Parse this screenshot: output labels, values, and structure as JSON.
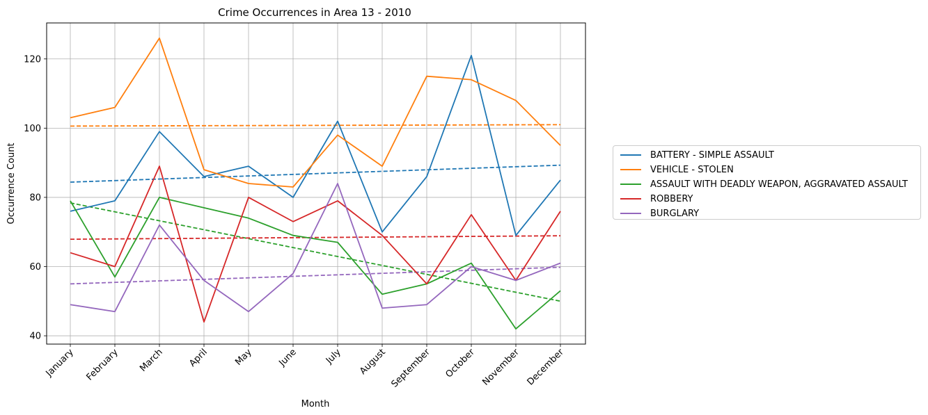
{
  "chart_data": {
    "type": "line",
    "title": "Crime Occurrences in Area 13 - 2010",
    "xlabel": "Month",
    "ylabel": "Occurrence Count",
    "categories": [
      "January",
      "February",
      "March",
      "April",
      "May",
      "June",
      "July",
      "August",
      "September",
      "October",
      "November",
      "December"
    ],
    "ylim": [
      37.6,
      130.4
    ],
    "yticks": [
      40,
      60,
      80,
      100,
      120
    ],
    "grid": true,
    "legend_position": "right",
    "series": [
      {
        "name": "BATTERY - SIMPLE ASSAULT",
        "color": "#1f77b4",
        "values": [
          76,
          79,
          99,
          86,
          89,
          80,
          102,
          70,
          86,
          121,
          69,
          85
        ],
        "trend": [
          84.4,
          89.3
        ]
      },
      {
        "name": "VEHICLE - STOLEN",
        "color": "#ff7f0e",
        "values": [
          103,
          106,
          126,
          88,
          84,
          83,
          98,
          89,
          115,
          114,
          108,
          95
        ],
        "trend": [
          100.6,
          101.0
        ]
      },
      {
        "name": "ASSAULT WITH DEADLY WEAPON, AGGRAVATED ASSAULT",
        "color": "#2ca02c",
        "values": [
          79,
          57,
          80,
          77,
          74,
          69,
          67,
          52,
          55,
          61,
          42,
          53
        ],
        "trend": [
          78.4,
          50.0
        ]
      },
      {
        "name": "ROBBERY",
        "color": "#d62728",
        "values": [
          64,
          60,
          89,
          44,
          80,
          73,
          79,
          69,
          55,
          75,
          56,
          76
        ],
        "trend": [
          67.9,
          68.9
        ]
      },
      {
        "name": "BURGLARY",
        "color": "#9467bd",
        "values": [
          49,
          47,
          72,
          56,
          47,
          58,
          84,
          48,
          49,
          60,
          56,
          61
        ],
        "trend": [
          55.0,
          59.8
        ]
      }
    ]
  }
}
